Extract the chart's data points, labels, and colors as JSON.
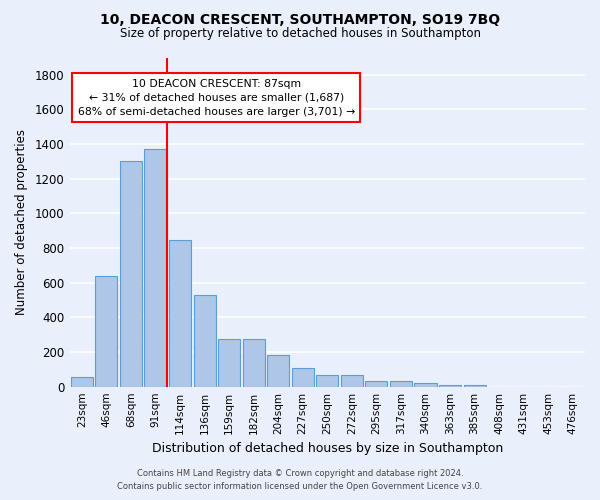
{
  "title": "10, DEACON CRESCENT, SOUTHAMPTON, SO19 7BQ",
  "subtitle": "Size of property relative to detached houses in Southampton",
  "xlabel": "Distribution of detached houses by size in Southampton",
  "ylabel": "Number of detached properties",
  "footer_line1": "Contains HM Land Registry data © Crown copyright and database right 2024.",
  "footer_line2": "Contains public sector information licensed under the Open Government Licence v3.0.",
  "annotation_line1": "10 DEACON CRESCENT: 87sqm",
  "annotation_line2": "← 31% of detached houses are smaller (1,687)",
  "annotation_line3": "68% of semi-detached houses are larger (3,701) →",
  "bar_labels": [
    "23sqm",
    "46sqm",
    "68sqm",
    "91sqm",
    "114sqm",
    "136sqm",
    "159sqm",
    "182sqm",
    "204sqm",
    "227sqm",
    "250sqm",
    "272sqm",
    "295sqm",
    "317sqm",
    "340sqm",
    "363sqm",
    "385sqm",
    "408sqm",
    "431sqm",
    "453sqm",
    "476sqm"
  ],
  "bar_values": [
    55,
    640,
    1305,
    1370,
    845,
    530,
    275,
    275,
    185,
    105,
    65,
    65,
    35,
    35,
    20,
    10,
    12,
    0,
    0,
    0,
    0
  ],
  "bar_color": "#aec6e8",
  "bar_edgecolor": "#5a9fd4",
  "vline_color": "red",
  "bg_color": "#eaf0fb",
  "plot_bg_color": "#eaf0fb",
  "grid_color": "white",
  "annotation_box_facecolor": "white",
  "annotation_box_edgecolor": "red",
  "ylim": [
    0,
    1900
  ],
  "yticks": [
    0,
    200,
    400,
    600,
    800,
    1000,
    1200,
    1400,
    1600,
    1800
  ]
}
